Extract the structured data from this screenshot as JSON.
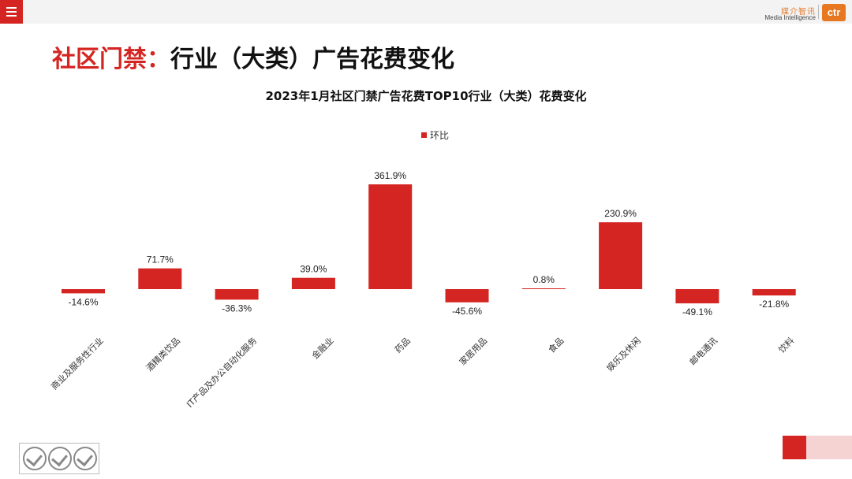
{
  "header": {
    "logo_cn": "媒介智讯",
    "logo_en": "Media Intelligence",
    "logo_mark": "ctr"
  },
  "page_title": {
    "highlight": "社区门禁：",
    "rest": "行业（大类）广告花费变化"
  },
  "colors": {
    "accent": "#d42522",
    "bar": "#d42522"
  },
  "chart_data": {
    "type": "bar",
    "title": "2023年1月社区门禁广告花费TOP10行业（大类）花费变化",
    "categories": [
      "商业及服务性行业",
      "酒精类饮品",
      "IT产品及办公自动化服务",
      "金融业",
      "药品",
      "家居用品",
      "食品",
      "娱乐及休闲",
      "邮电通讯",
      "饮料"
    ],
    "series": [
      {
        "name": "环比",
        "values": [
          -14.6,
          71.7,
          -36.3,
          39.0,
          361.9,
          -45.6,
          0.8,
          230.9,
          -49.1,
          -21.8
        ]
      }
    ],
    "data_labels": [
      "-14.6%",
      "71.7%",
      "-36.3%",
      "39.0%",
      "361.9%",
      "-45.6%",
      "0.8%",
      "230.9%",
      "-49.1%",
      "-21.8%"
    ],
    "legend_position": "top",
    "grid": false
  }
}
